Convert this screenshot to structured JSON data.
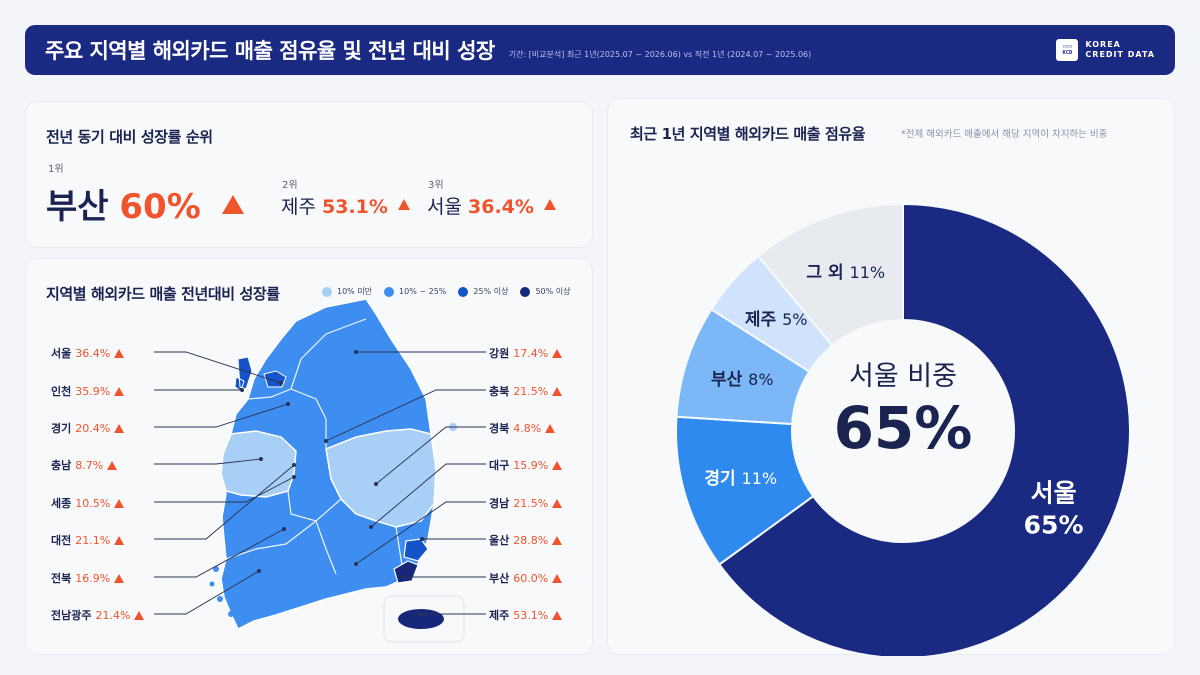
{
  "header": {
    "title": "주요 지역별 해외카드 매출 점유율 및 전년 대비 성장",
    "period": "기간: [비교분석] 최근 1년(2025.07 ~ 2026.06) vs 직전 1년 (2024.07 ~ 2025.06)",
    "brand_logo": [
      "KOREA",
      "CREDIT DATA"
    ],
    "brand_mark": "KCD"
  },
  "ranking": {
    "title": "전년 동기 대비 성장률 순위",
    "items": [
      {
        "rank": "1위",
        "region": "부산",
        "value": "60%"
      },
      {
        "rank": "2위",
        "region": "제주",
        "value": "53.1%"
      },
      {
        "rank": "3위",
        "region": "서울",
        "value": "36.4%"
      }
    ]
  },
  "map": {
    "title": "지역별 해외카드 매출 전년대비 성장률",
    "legend": [
      {
        "label": "10% 미만",
        "color": "#a8d0f7"
      },
      {
        "label": "10% ~ 25%",
        "color": "#3d8ef0"
      },
      {
        "label": "25% 이상",
        "color": "#1553c9"
      },
      {
        "label": "50% 이상",
        "color": "#17287a"
      }
    ],
    "left_regions": [
      {
        "region": "서울",
        "value": "36.4%"
      },
      {
        "region": "인천",
        "value": "35.9%"
      },
      {
        "region": "경기",
        "value": "20.4%"
      },
      {
        "region": "충남",
        "value": "8.7%"
      },
      {
        "region": "세종",
        "value": "10.5%"
      },
      {
        "region": "대전",
        "value": "21.1%"
      },
      {
        "region": "전북",
        "value": "16.9%"
      },
      {
        "region": "전남광주",
        "value": "21.4%"
      }
    ],
    "right_regions": [
      {
        "region": "강원",
        "value": "17.4%"
      },
      {
        "region": "충북",
        "value": "21.5%"
      },
      {
        "region": "경북",
        "value": "4.8%"
      },
      {
        "region": "대구",
        "value": "15.9%"
      },
      {
        "region": "경남",
        "value": "21.5%"
      },
      {
        "region": "울산",
        "value": "28.8%"
      },
      {
        "region": "부산",
        "value": "60.0%"
      },
      {
        "region": "제주",
        "value": "53.1%"
      }
    ]
  },
  "share": {
    "title": "최근 1년 지역별 해외카드 매출 점유율",
    "note": "*전체 해외카드 매출에서 해당 지역이 차지하는 비중",
    "center_label": "서울 비중",
    "center_value": "65%"
  },
  "chart_data": [
    {
      "type": "bar",
      "title": "지역별 해외카드 매출 전년대비 성장률",
      "categories": [
        "서울",
        "인천",
        "경기",
        "충남",
        "세종",
        "대전",
        "전북",
        "전남광주",
        "강원",
        "충북",
        "경북",
        "대구",
        "경남",
        "울산",
        "부산",
        "제주"
      ],
      "values": [
        36.4,
        35.9,
        20.4,
        8.7,
        10.5,
        21.1,
        16.9,
        21.4,
        17.4,
        21.5,
        4.8,
        15.9,
        21.5,
        28.8,
        60.0,
        53.1
      ]
    },
    {
      "type": "pie",
      "title": "최근 1년 지역별 해외카드 매출 점유율",
      "slices": [
        {
          "label": "서울",
          "value": 65,
          "display": "65%",
          "color": "#1a2a82"
        },
        {
          "label": "경기",
          "value": 11,
          "display": "11%",
          "color": "#2f8af0"
        },
        {
          "label": "부산",
          "value": 8,
          "display": "8%",
          "color": "#7cb8f7"
        },
        {
          "label": "제주",
          "value": 5,
          "display": "5%",
          "color": "#cfe4fc"
        },
        {
          "label": "그 외",
          "value": 11,
          "display": "11%",
          "color": "#e7ebf0"
        }
      ]
    }
  ]
}
